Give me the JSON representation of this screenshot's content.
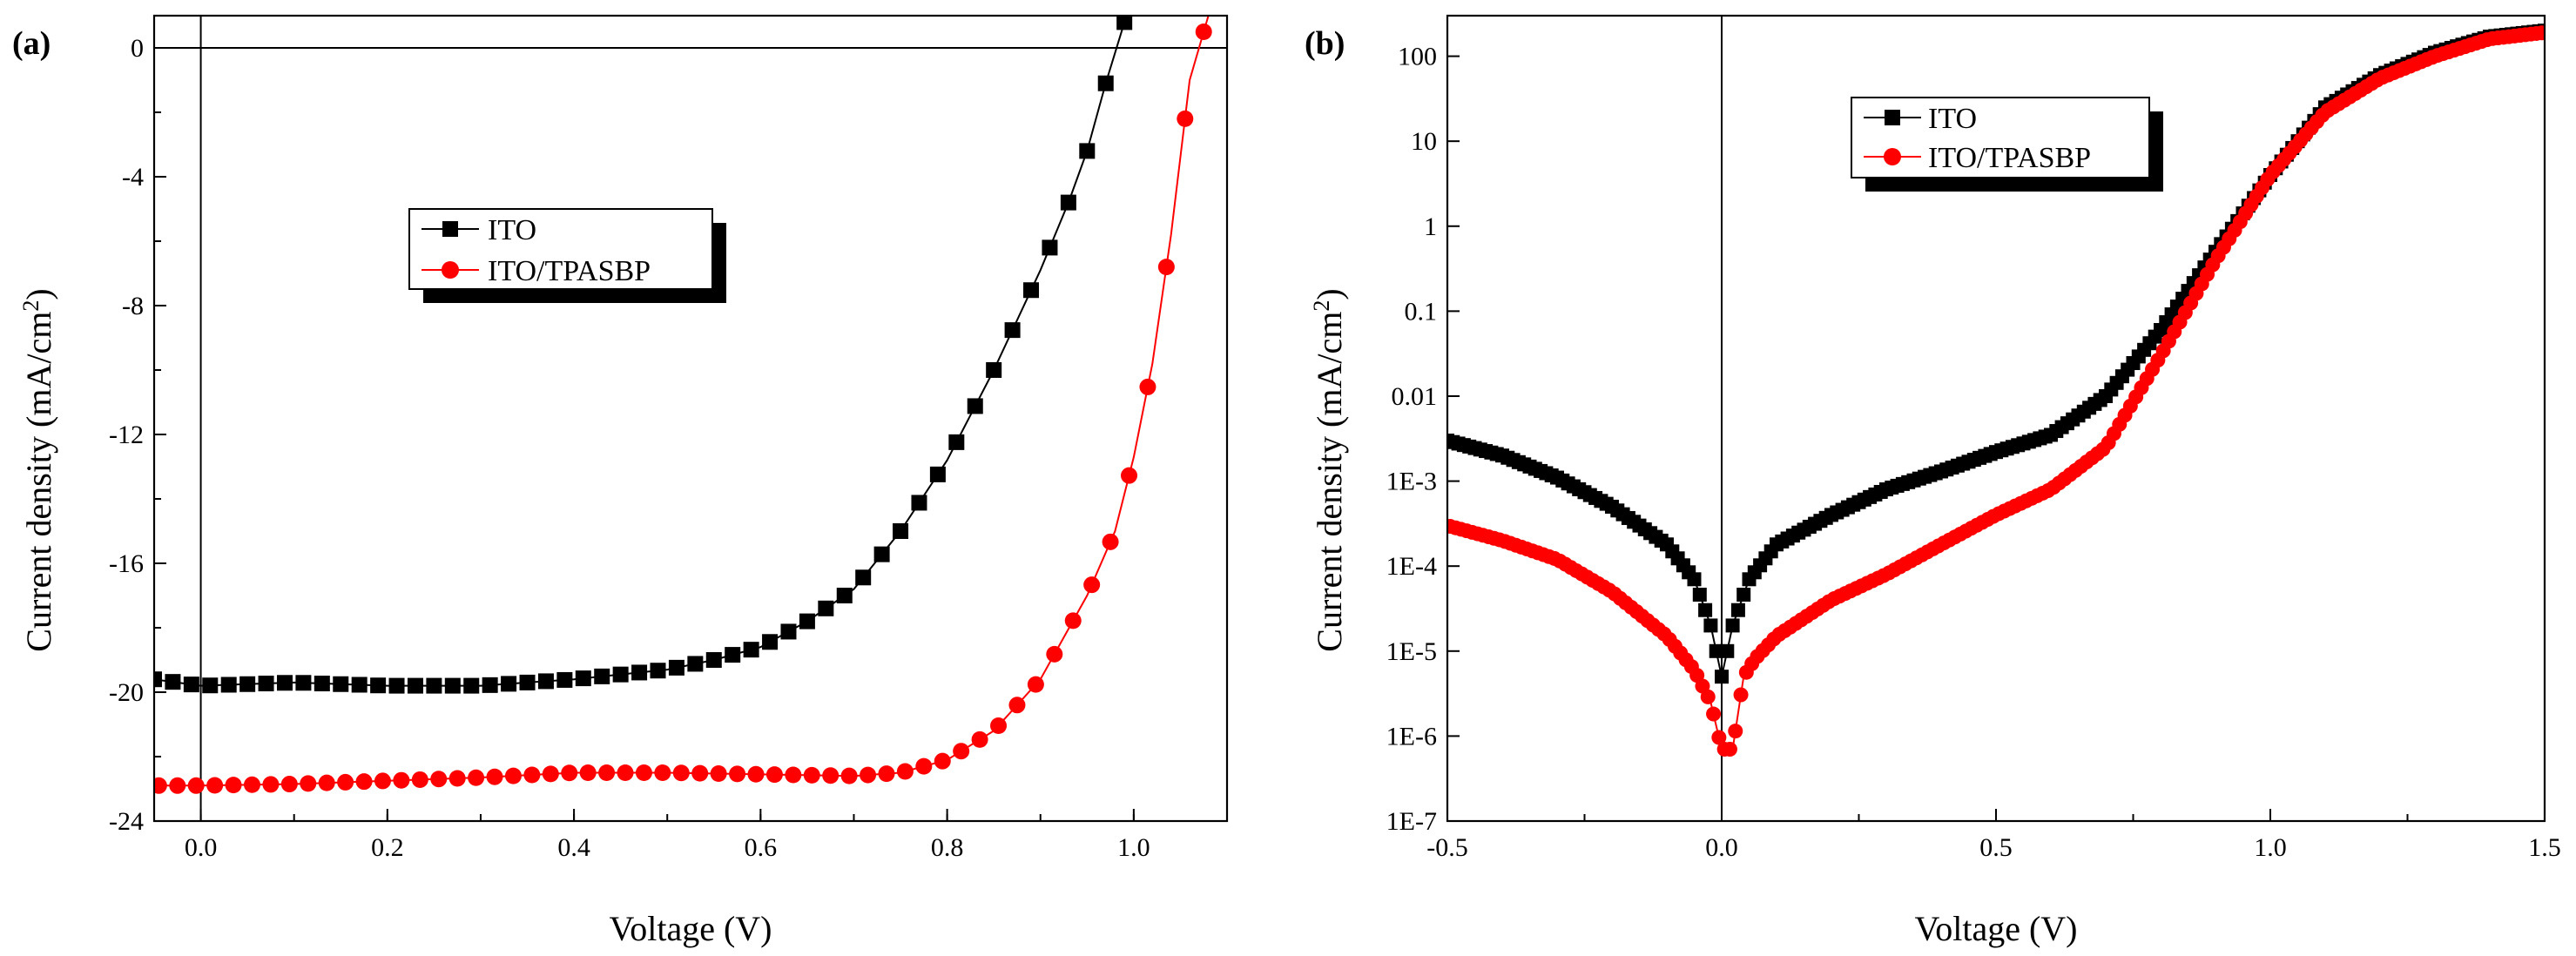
{
  "chart_data": [
    {
      "type": "line",
      "panel_label": "(a)",
      "xlabel": "Voltage (V)",
      "ylabel": "Current density (mA/cm2)",
      "xlim": [
        -0.05,
        1.1
      ],
      "ylim": [
        -24,
        1
      ],
      "x_ticks": [
        0.0,
        0.2,
        0.4,
        0.6,
        0.8,
        1.0
      ],
      "x_tick_labels": [
        "0.0",
        "0.2",
        "0.4",
        "0.6",
        "0.8",
        "1.0"
      ],
      "y_ticks": [
        0,
        -4,
        -8,
        -12,
        -16,
        -20,
        -24
      ],
      "y_tick_labels": [
        "0",
        "-4",
        "-8",
        "-12",
        "-16",
        "-20",
        "-24"
      ],
      "legend_position": "upper-left",
      "reference_lines": {
        "x": 0,
        "y": 0
      },
      "series": [
        {
          "name": "ITO",
          "color": "#000000",
          "marker": "square",
          "points": [
            [
              -0.05,
              -19.6
            ],
            [
              0.0,
              -19.8
            ],
            [
              0.1,
              -19.7
            ],
            [
              0.2,
              -19.8
            ],
            [
              0.3,
              -19.8
            ],
            [
              0.4,
              -19.6
            ],
            [
              0.5,
              -19.3
            ],
            [
              0.55,
              -19.0
            ],
            [
              0.6,
              -18.6
            ],
            [
              0.65,
              -17.8
            ],
            [
              0.7,
              -16.8
            ],
            [
              0.75,
              -15.0
            ],
            [
              0.8,
              -12.8
            ],
            [
              0.85,
              -10.0
            ],
            [
              0.9,
              -6.9
            ],
            [
              0.93,
              -4.8
            ],
            [
              0.95,
              -3.2
            ],
            [
              0.97,
              -1.1
            ],
            [
              0.99,
              0.8
            ]
          ]
        },
        {
          "name": "ITO/TPASBP",
          "color": "#ff0000",
          "marker": "circle",
          "points": [
            [
              -0.05,
              -22.9
            ],
            [
              0.0,
              -22.9
            ],
            [
              0.1,
              -22.85
            ],
            [
              0.2,
              -22.75
            ],
            [
              0.3,
              -22.65
            ],
            [
              0.4,
              -22.5
            ],
            [
              0.5,
              -22.5
            ],
            [
              0.6,
              -22.55
            ],
            [
              0.7,
              -22.6
            ],
            [
              0.75,
              -22.5
            ],
            [
              0.8,
              -22.1
            ],
            [
              0.85,
              -21.2
            ],
            [
              0.9,
              -19.6
            ],
            [
              0.95,
              -17.0
            ],
            [
              0.98,
              -15.0
            ],
            [
              1.0,
              -12.7
            ],
            [
              1.02,
              -9.8
            ],
            [
              1.04,
              -5.8
            ],
            [
              1.06,
              -1.0
            ],
            [
              1.08,
              1.0
            ]
          ]
        }
      ]
    },
    {
      "type": "line",
      "panel_label": "(b)",
      "xlabel": "Voltage (V)",
      "ylabel": "Current density (mA/cm2)",
      "xlim": [
        -0.5,
        1.5
      ],
      "ylim": [
        1e-07,
        300
      ],
      "y_scale": "log",
      "x_ticks": [
        -0.5,
        0.0,
        0.5,
        1.0,
        1.5
      ],
      "x_tick_labels": [
        "-0.5",
        "0.0",
        "0.5",
        "1.0",
        "1.5"
      ],
      "y_ticks": [
        100,
        10,
        1,
        0.1,
        0.01,
        0.001,
        0.0001,
        1e-05,
        1e-06,
        1e-07
      ],
      "y_tick_labels": [
        "100",
        "10",
        "1",
        "0.1",
        "0.01",
        "1E-3",
        "1E-4",
        "1E-5",
        "1E-6",
        "1E-7"
      ],
      "legend_position": "upper-left",
      "reference_lines": {
        "x": 0
      },
      "series": [
        {
          "name": "ITO",
          "color": "#000000",
          "marker": "square",
          "points": [
            [
              -0.5,
              0.003
            ],
            [
              -0.4,
              0.002
            ],
            [
              -0.3,
              0.0011
            ],
            [
              -0.2,
              0.0005
            ],
            [
              -0.1,
              0.00018
            ],
            [
              -0.05,
              7e-05
            ],
            [
              -0.02,
              2e-05
            ],
            [
              0.0,
              5e-06
            ],
            [
              0.02,
              2e-05
            ],
            [
              0.05,
              7e-05
            ],
            [
              0.1,
              0.00018
            ],
            [
              0.2,
              0.0004
            ],
            [
              0.3,
              0.0008
            ],
            [
              0.4,
              0.0013
            ],
            [
              0.5,
              0.0022
            ],
            [
              0.6,
              0.0035
            ],
            [
              0.7,
              0.01
            ],
            [
              0.8,
              0.06
            ],
            [
              0.9,
              0.5
            ],
            [
              1.0,
              4.0
            ],
            [
              1.1,
              25
            ],
            [
              1.2,
              60
            ],
            [
              1.3,
              110
            ],
            [
              1.4,
              170
            ],
            [
              1.5,
              200
            ]
          ]
        },
        {
          "name": "ITO/TPASBP",
          "color": "#ff0000",
          "marker": "circle",
          "points": [
            [
              -0.5,
              0.0003
            ],
            [
              -0.4,
              0.0002
            ],
            [
              -0.3,
              0.00012
            ],
            [
              -0.2,
              5e-05
            ],
            [
              -0.1,
              1.5e-05
            ],
            [
              -0.05,
              6e-06
            ],
            [
              -0.02,
              2.5e-06
            ],
            [
              0.0,
              7e-07
            ],
            [
              0.02,
              7e-07
            ],
            [
              0.04,
              5e-06
            ],
            [
              0.06,
              8e-06
            ],
            [
              0.1,
              1.5e-05
            ],
            [
              0.2,
              4e-05
            ],
            [
              0.3,
              8e-05
            ],
            [
              0.4,
              0.00018
            ],
            [
              0.5,
              0.0004
            ],
            [
              0.6,
              0.0008
            ],
            [
              0.7,
              0.0025
            ],
            [
              0.8,
              0.03
            ],
            [
              0.9,
              0.4
            ],
            [
              1.0,
              4.0
            ],
            [
              1.1,
              22
            ],
            [
              1.2,
              55
            ],
            [
              1.3,
              100
            ],
            [
              1.4,
              160
            ],
            [
              1.5,
              190
            ]
          ]
        }
      ]
    }
  ]
}
